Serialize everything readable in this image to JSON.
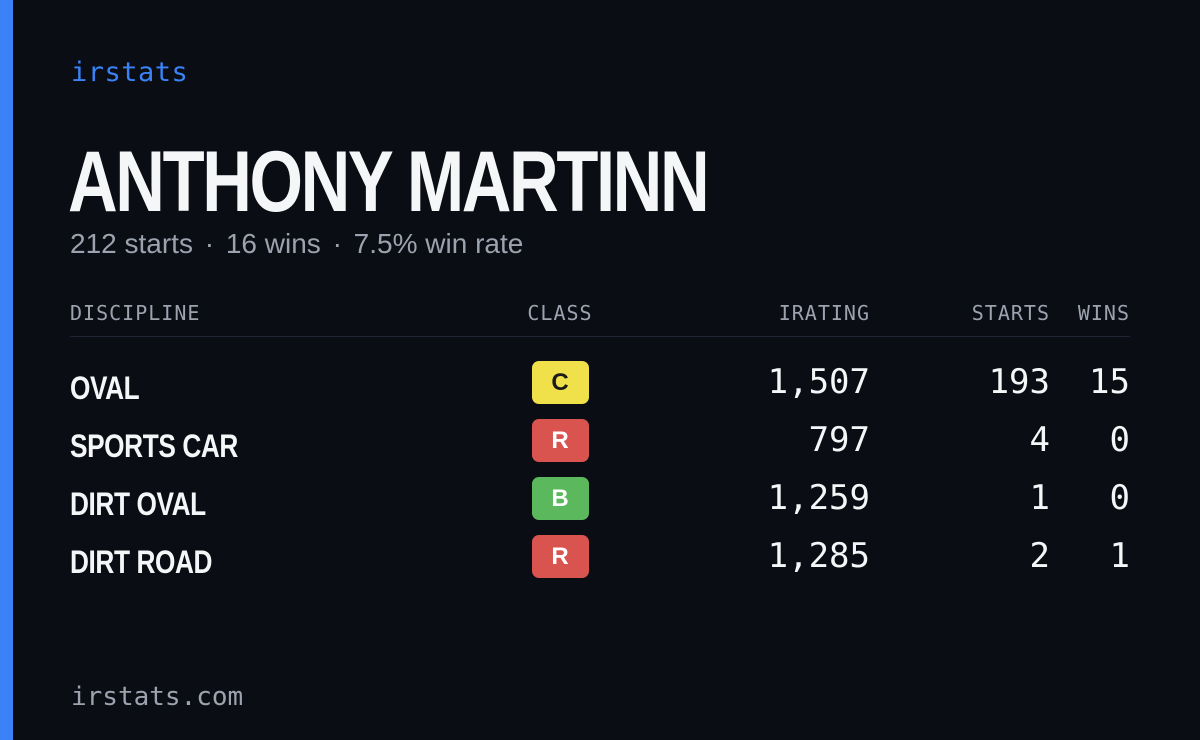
{
  "brand": "irstats",
  "player": {
    "name": "ANTHONY MARTINN",
    "starts_text": "212 starts",
    "wins_text": "16 wins",
    "winrate_text": "7.5% win rate",
    "separator": "·"
  },
  "table": {
    "headers": {
      "discipline": "DISCIPLINE",
      "class": "CLASS",
      "irating": "IRATING",
      "starts": "STARTS",
      "wins": "WINS"
    },
    "rows": [
      {
        "discipline": "OVAL",
        "class": "C",
        "class_color": "#f0e04a",
        "class_text_color": "#1a1a1a",
        "irating": "1,507",
        "starts": "193",
        "wins": "15"
      },
      {
        "discipline": "SPORTS CAR",
        "class": "R",
        "class_color": "#d9534f",
        "class_text_color": "#ffffff",
        "irating": "797",
        "starts": "4",
        "wins": "0"
      },
      {
        "discipline": "DIRT OVAL",
        "class": "B",
        "class_color": "#5cb85c",
        "class_text_color": "#ffffff",
        "irating": "1,259",
        "starts": "1",
        "wins": "0"
      },
      {
        "discipline": "DIRT ROAD",
        "class": "R",
        "class_color": "#d9534f",
        "class_text_color": "#ffffff",
        "irating": "1,285",
        "starts": "2",
        "wins": "1"
      }
    ]
  },
  "footer": {
    "site": "irstats.com"
  },
  "colors": {
    "accent": "#3b82f6",
    "background": "#0a0d14",
    "muted": "#9ca3af"
  }
}
